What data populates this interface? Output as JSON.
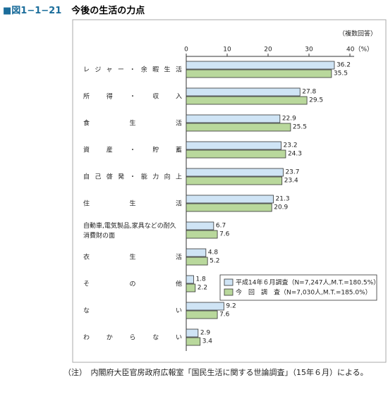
{
  "header": {
    "figure": "■図1−1−21",
    "title": "今後の生活の力点"
  },
  "chart_data": {
    "type": "hbar",
    "note_top": "（複数回答）",
    "categories": [
      "レジャー・余暇生活",
      "所得・収入",
      "食生活",
      "資産・貯蓄",
      "自己啓発・能力向上",
      "住生活",
      "自動車,電気製品,家具などの耐久消費財の面",
      "衣生活",
      "その他",
      "ない",
      "わからない"
    ],
    "series": [
      {
        "name": "平成14年６月調査（N=7,247人,M.T.=180.5%）",
        "color": "#cfe4f5",
        "values": [
          36.2,
          27.8,
          22.9,
          23.2,
          23.7,
          21.3,
          6.7,
          4.8,
          1.8,
          9.2,
          2.9
        ]
      },
      {
        "name": "今　回　調　査（N=7,030人,M.T.=185.0%）",
        "color": "#b9d89c",
        "values": [
          35.5,
          29.5,
          25.5,
          24.3,
          23.4,
          20.9,
          7.6,
          5.2,
          2.2,
          7.6,
          3.4
        ]
      }
    ],
    "xlim": [
      0,
      40
    ],
    "xticks": [
      0,
      10,
      20,
      30,
      {
        "value": 40,
        "label": "40（%）"
      }
    ],
    "legend": "lower-right"
  },
  "footnote": "（注）　内閣府大臣官房政府広報室「国民生活に関する世論調査」（15年６月）による。"
}
